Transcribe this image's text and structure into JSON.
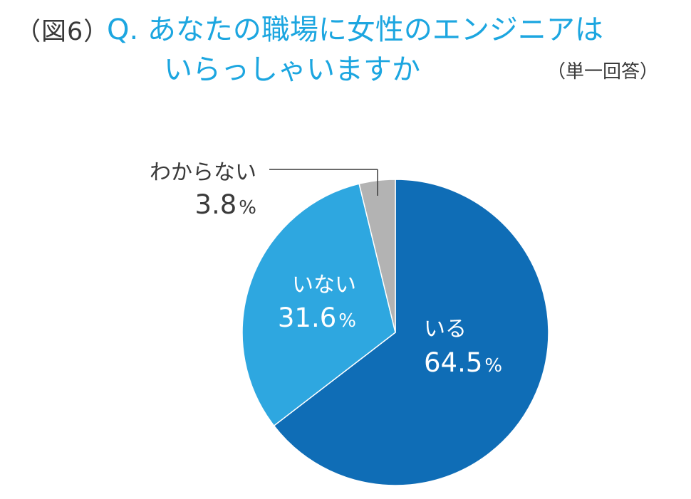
{
  "header": {
    "figure_label": "（図6）",
    "question_line1": "Q. あなたの職場に女性のエンジニアは",
    "question_line2": "いらっしゃいますか",
    "answer_type": "（単一回答）"
  },
  "colors": {
    "title": "#1ca6e0",
    "text_dark": "#3a3a3a",
    "slice_1": "#0f6db6",
    "slice_2": "#2ea7e0",
    "slice_3": "#b3b3b3"
  },
  "chart_data": {
    "type": "pie",
    "title": "Q. あなたの職場に女性のエンジニアは いらっしゃいますか",
    "slices": [
      {
        "label": "いる",
        "value": 64.5,
        "value_text": "64.5",
        "unit": "%",
        "color": "#0f6db6"
      },
      {
        "label": "いない",
        "value": 31.6,
        "value_text": "31.6",
        "unit": "%",
        "color": "#2ea7e0"
      },
      {
        "label": "わからない",
        "value": 3.8,
        "value_text": "3.8",
        "unit": "%",
        "color": "#b3b3b3"
      }
    ],
    "start_angle": "12 o'clock",
    "direction": "clockwise"
  }
}
